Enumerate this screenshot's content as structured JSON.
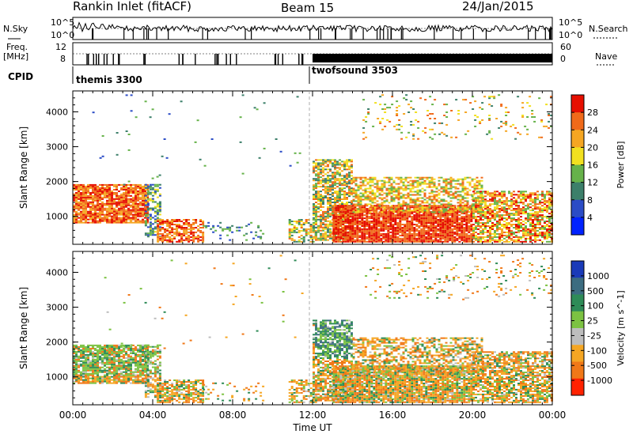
{
  "header": {
    "title": "Rankin Inlet (fitACF)",
    "beam": "Beam 15",
    "date": "24/Jan/2015"
  },
  "side_labels": {
    "nsky": "N.Sky",
    "freq_line1": "Freq.",
    "freq_line2": "[MHz]",
    "cpid": "CPID",
    "nsearch": "N.Search",
    "nave": "Nave"
  },
  "small_panels": {
    "noise_ticks_left": [
      "10^5",
      "10^0"
    ],
    "noise_ticks_right": [
      "10^5",
      "10^0"
    ],
    "freq_ticks_left": [
      "12",
      "8"
    ],
    "nave_ticks_right": [
      "60",
      "0"
    ]
  },
  "cpid_segments": [
    {
      "label": "themis 3300",
      "start_hour": 0
    },
    {
      "label": "twofsound 3503",
      "start_hour": 12
    }
  ],
  "colors": {
    "power_scale": [
      "#0022ff",
      "#2b4cc6",
      "#3c7f6a",
      "#66b24a",
      "#f2e020",
      "#f5a623",
      "#f06a1a",
      "#e60f00"
    ],
    "velocity_scale": [
      "#1a3ab8",
      "#3c6c80",
      "#2e8b57",
      "#7cc242",
      "#bdbdbd",
      "#f5a623",
      "#f07818",
      "#ff2200"
    ]
  },
  "chart_data": [
    {
      "type": "heatmap",
      "quantity": "Power",
      "ylabel": "Slant Range [km]",
      "yticks": [
        1000,
        2000,
        3000,
        4000
      ],
      "ylim": [
        200,
        4600
      ],
      "xlim_hours": [
        0,
        24
      ],
      "colorbar_label": "Power [dB]",
      "colorbar_ticks": [
        "4",
        "8",
        "12",
        "16",
        "20",
        "24",
        "28"
      ],
      "colorbar_range": [
        0,
        32
      ]
    },
    {
      "type": "heatmap",
      "quantity": "Velocity",
      "ylabel": "Slant Range [km]",
      "xlabel": "Time UT",
      "xticks": [
        "00:00",
        "04:00",
        "08:00",
        "12:00",
        "16:00",
        "20:00",
        "00:00"
      ],
      "yticks": [
        1000,
        2000,
        3000,
        4000
      ],
      "ylim": [
        200,
        4600
      ],
      "xlim_hours": [
        0,
        24
      ],
      "colorbar_label": "Velocity [m s^-1]",
      "colorbar_ticks": [
        "1000",
        "500",
        "100",
        "25",
        "-25",
        "-100",
        "-500",
        "-1000"
      ]
    }
  ]
}
